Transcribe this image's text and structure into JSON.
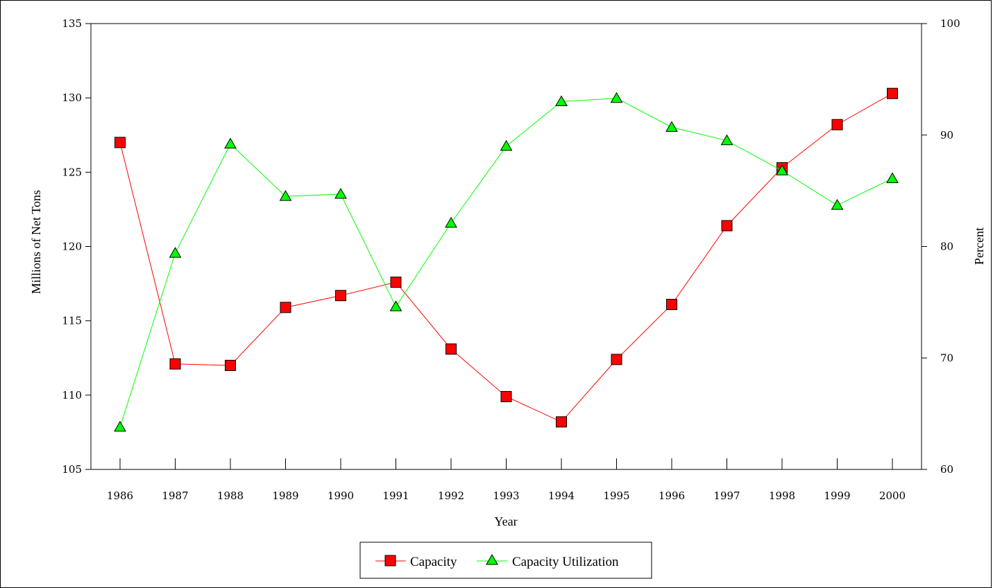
{
  "chart_data": {
    "type": "line",
    "categories": [
      "1986",
      "1987",
      "1988",
      "1989",
      "1990",
      "1991",
      "1992",
      "1993",
      "1994",
      "1995",
      "1996",
      "1997",
      "1998",
      "1999",
      "2000"
    ],
    "xlabel": "Year",
    "ylabel": "Millions of Net Tons",
    "y2label": "Percent",
    "ylim": [
      105,
      135
    ],
    "y2lim": [
      60,
      100
    ],
    "yticks": [
      105,
      110,
      115,
      120,
      125,
      130,
      135
    ],
    "y2ticks": [
      60,
      70,
      80,
      90,
      100
    ],
    "grid": false,
    "legend_position": "bottom-center",
    "series": [
      {
        "name": "Capacity",
        "axis": "left",
        "marker": "square",
        "color": "#ff0000",
        "values": [
          127.0,
          112.1,
          112.0,
          115.9,
          116.7,
          117.6,
          113.1,
          109.9,
          108.2,
          112.4,
          116.1,
          121.4,
          125.3,
          128.2,
          130.3
        ]
      },
      {
        "name": "Capacity Utilization",
        "axis": "right",
        "marker": "triangle",
        "color": "#00ff00",
        "values": [
          63.8,
          79.4,
          89.2,
          84.5,
          84.7,
          74.6,
          82.1,
          89.0,
          93.0,
          93.3,
          90.7,
          89.5,
          86.8,
          83.7,
          86.1
        ]
      }
    ]
  }
}
